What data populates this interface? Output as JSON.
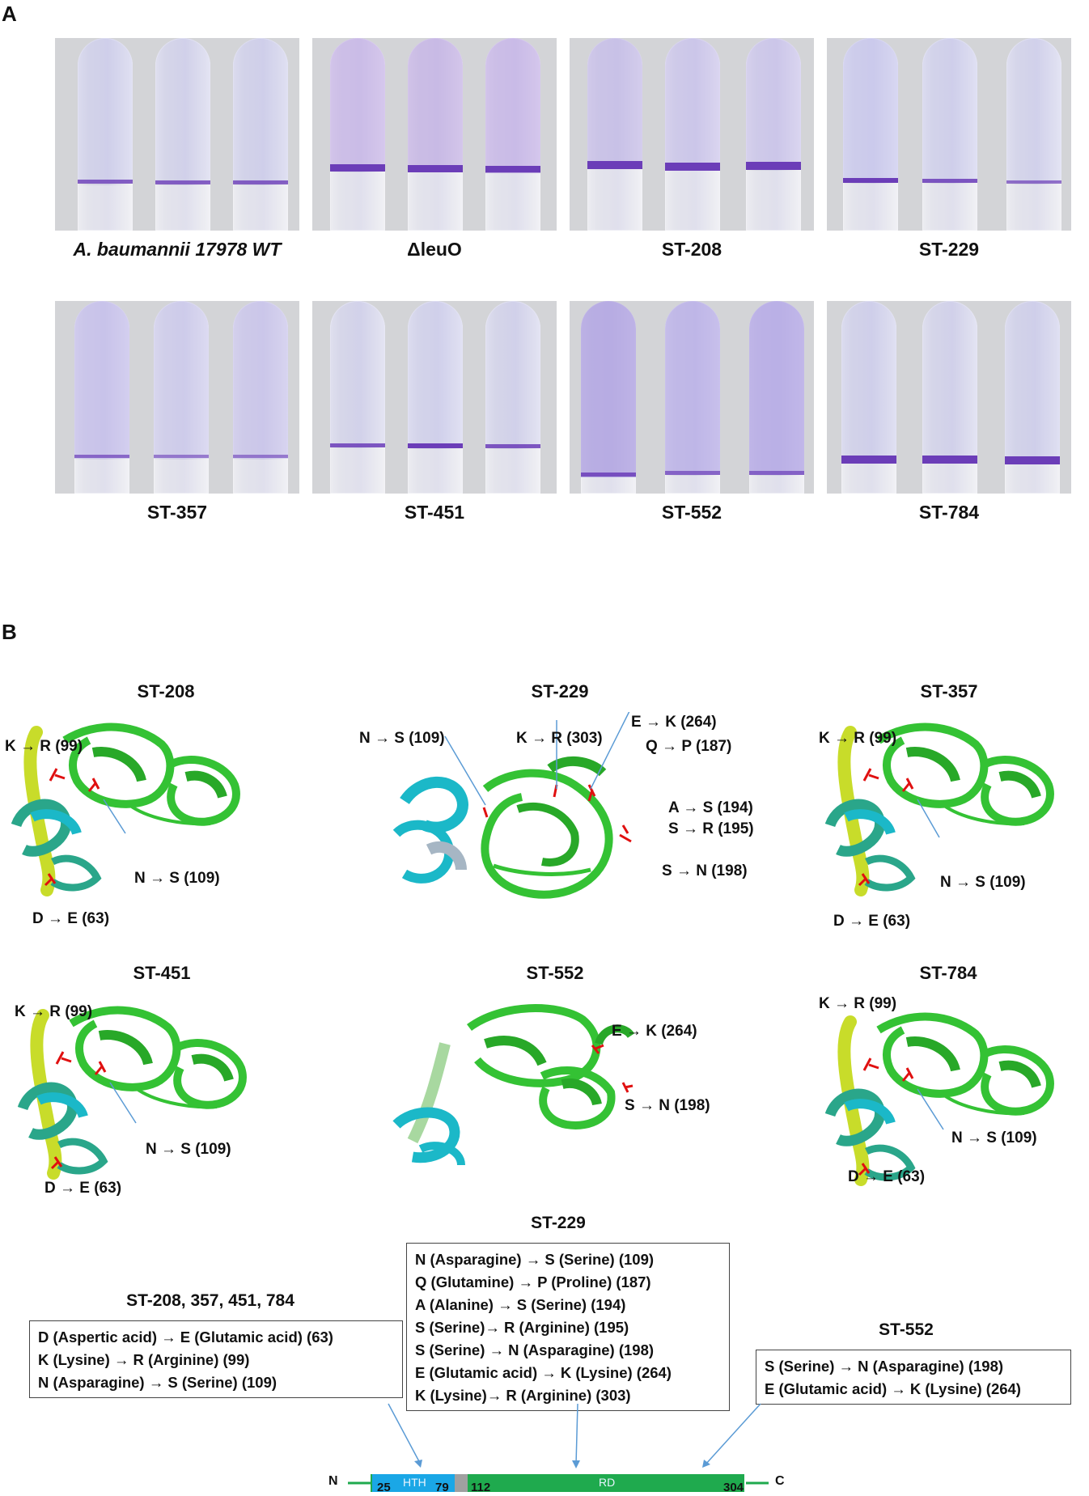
{
  "panels": {
    "a": "A",
    "b": "B"
  },
  "panel_a": {
    "row1": [
      "A. baumannii 17978 WT",
      "ΔleuO",
      "ST-208",
      "ST-229"
    ],
    "row2": [
      "ST-357",
      "ST-451",
      "ST-552",
      "ST-784"
    ]
  },
  "panel_b": {
    "structures": {
      "st208": {
        "title": "ST-208",
        "muts": [
          "K → R (99)",
          "N → S (109)",
          "D → E (63)"
        ]
      },
      "st229": {
        "title": "ST-229",
        "muts": [
          "N → S (109)",
          "K → R (303)",
          "E → K (264)",
          "Q → P (187)",
          "A → S (194)",
          "S → R (195)",
          "S → N (198)"
        ]
      },
      "st357": {
        "title": "ST-357",
        "muts": [
          "K → R (99)",
          "N → S (109)",
          "D → E (63)"
        ]
      },
      "st451": {
        "title": "ST-451",
        "muts": [
          "K → R (99)",
          "N → S (109)",
          "D → E (63)"
        ]
      },
      "st552": {
        "title": "ST-552",
        "muts": [
          "E → K (264)",
          "S → N (198)"
        ]
      },
      "st784": {
        "title": "ST-784",
        "muts": [
          "K → R (99)",
          "N → S (109)",
          "D → E (63)"
        ]
      }
    },
    "boxes": {
      "left": {
        "title": "ST-208, 357, 451, 784",
        "lines": [
          "D (Aspertic acid) → E (Glutamic acid) (63)",
          "K (Lysine) → R (Arginine) (99)",
          "N (Asparagine) → S (Serine) (109)"
        ]
      },
      "middle": {
        "title": "ST-229",
        "lines": [
          "N (Asparagine) → S (Serine) (109)",
          "Q (Glutamine) → P (Proline) (187)",
          "A (Alanine) → S (Serine) (194)",
          "S (Serine)→ R (Arginine) (195)",
          "S (Serine) → N (Asparagine) (198)",
          "E (Glutamic acid) → K (Lysine) (264)",
          "K (Lysine)→ R (Arginine) (303)"
        ]
      },
      "right": {
        "title": "ST-552",
        "lines": [
          "S (Serine) → N (Asparagine) (198)",
          "E (Glutamic acid) → K (Lysine) (264)"
        ]
      }
    },
    "domain_map": {
      "n": "N",
      "c": "C",
      "hth": "HTH",
      "rd": "RD",
      "positions": [
        "25",
        "79",
        "112",
        "304"
      ]
    }
  },
  "colors": {
    "stain": "#6b3db8",
    "green": "#34c234",
    "cyan": "#1bb8c8",
    "teal": "#2aa68a",
    "yellow": "#c8dc2a",
    "red": "#e01010",
    "hth": "#1aa7e6",
    "rd": "#1faa4e",
    "linker": "#a0a0a0",
    "arrow": "#5b9bd5"
  }
}
